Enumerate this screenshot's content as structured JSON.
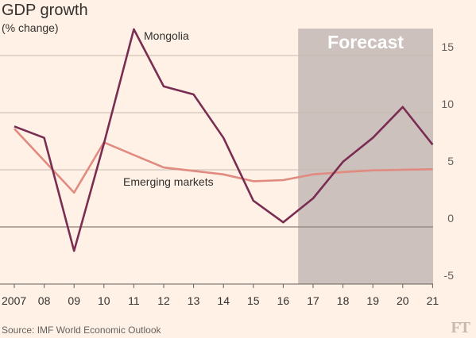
{
  "header": {
    "title": "GDP growth",
    "subtitle": "(% change)"
  },
  "footer": {
    "source": "Source: IMF World Economic Outlook",
    "logo": "FT"
  },
  "chart_data": {
    "type": "line",
    "x": [
      "2007",
      "08",
      "09",
      "10",
      "11",
      "12",
      "13",
      "14",
      "15",
      "16",
      "17",
      "18",
      "19",
      "20",
      "21"
    ],
    "ylim": [
      -5,
      17.5
    ],
    "yticks": [
      -5,
      0,
      5,
      10,
      15
    ],
    "forecast_label": "Forecast",
    "forecast_from_index": 9.5,
    "grid": true,
    "series": [
      {
        "name": "Mongolia",
        "color": "#7a2d52",
        "values": [
          8.8,
          7.8,
          -2.1,
          7.3,
          17.3,
          12.3,
          11.6,
          7.8,
          2.3,
          0.4,
          2.5,
          5.7,
          7.8,
          10.5,
          7.2
        ]
      },
      {
        "name": "Emerging markets",
        "color": "#e08a80",
        "values": [
          8.6,
          5.8,
          3.0,
          7.4,
          6.3,
          5.2,
          4.9,
          4.6,
          4.0,
          4.1,
          4.6,
          4.8,
          4.95,
          5.0,
          5.05
        ]
      }
    ]
  }
}
